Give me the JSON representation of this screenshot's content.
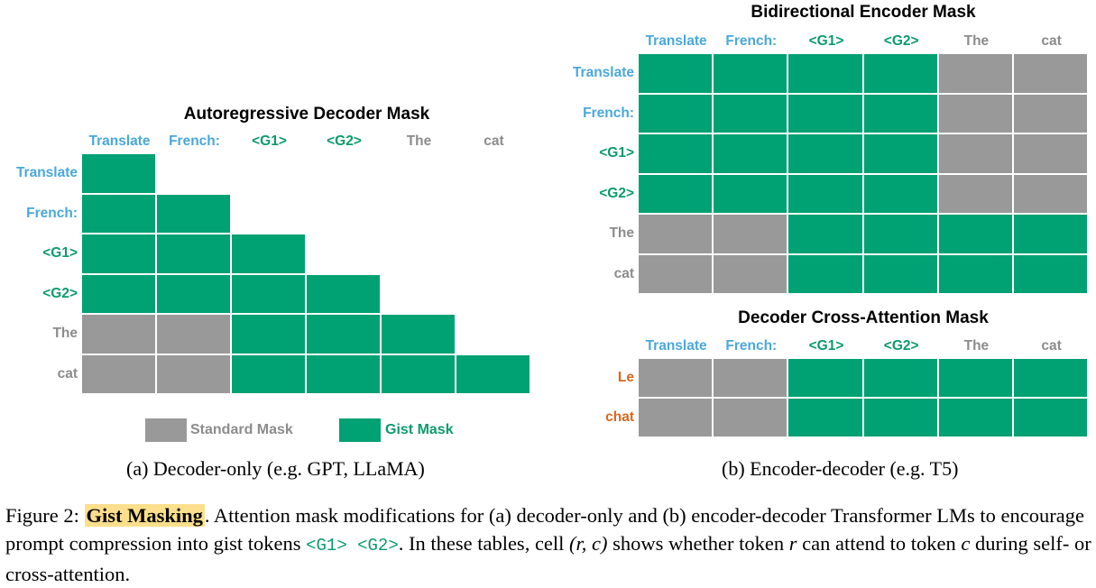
{
  "colors": {
    "gist": "#00a172",
    "standard": "#999999",
    "prompt_token": "#4aa8dc",
    "gist_token": "#0d9b6a",
    "output_token": "#8c8c8c",
    "decoder_token": "#d9671c"
  },
  "panel_a": {
    "title": "Autoregressive Decoder Mask",
    "col_tokens": [
      "Translate",
      "French:",
      "<G1>",
      "<G2>",
      "The",
      "cat"
    ],
    "row_tokens": [
      "Translate",
      "French:",
      "<G1>",
      "<G2>",
      "The",
      "cat"
    ],
    "mask": [
      [
        "G",
        "",
        "",
        "",
        "",
        ""
      ],
      [
        "G",
        "G",
        "",
        "",
        "",
        ""
      ],
      [
        "G",
        "G",
        "G",
        "",
        "",
        ""
      ],
      [
        "G",
        "G",
        "G",
        "G",
        "",
        ""
      ],
      [
        "S",
        "S",
        "G",
        "G",
        "G",
        ""
      ],
      [
        "S",
        "S",
        "G",
        "G",
        "G",
        "G"
      ]
    ],
    "legend": {
      "standard_label": "Standard Mask",
      "gist_label": "Gist Mask"
    },
    "caption": "(a) Decoder-only (e.g. GPT, LLaMA)"
  },
  "panel_b": {
    "encoder": {
      "title": "Bidirectional Encoder Mask",
      "col_tokens": [
        "Translate",
        "French:",
        "<G1>",
        "<G2>",
        "The",
        "cat"
      ],
      "row_tokens": [
        "Translate",
        "French:",
        "<G1>",
        "<G2>",
        "The",
        "cat"
      ],
      "mask": [
        [
          "G",
          "G",
          "G",
          "G",
          "S",
          "S"
        ],
        [
          "G",
          "G",
          "G",
          "G",
          "S",
          "S"
        ],
        [
          "G",
          "G",
          "G",
          "G",
          "S",
          "S"
        ],
        [
          "G",
          "G",
          "G",
          "G",
          "S",
          "S"
        ],
        [
          "S",
          "S",
          "G",
          "G",
          "G",
          "G"
        ],
        [
          "S",
          "S",
          "G",
          "G",
          "G",
          "G"
        ]
      ]
    },
    "cross": {
      "title": "Decoder Cross-Attention Mask",
      "col_tokens": [
        "Translate",
        "French:",
        "<G1>",
        "<G2>",
        "The",
        "cat"
      ],
      "row_tokens": [
        "Le",
        "chat"
      ],
      "mask": [
        [
          "S",
          "S",
          "G",
          "G",
          "G",
          "G"
        ],
        [
          "S",
          "S",
          "G",
          "G",
          "G",
          "G"
        ]
      ]
    },
    "caption": "(b) Encoder-decoder (e.g. T5)"
  },
  "figure_caption": {
    "prefix": "Figure 2: ",
    "highlight": "Gist Masking",
    "text1": ". Attention mask modifications for (a) decoder-only and (b) encoder-decoder Transformer LMs to encourage prompt compression into gist tokens ",
    "code": "<G1> <G2>",
    "text2": ". In these tables, cell ",
    "math_rc": "(r, c)",
    "text3": " shows whether token ",
    "math_r": "r",
    "text4": " can attend to token ",
    "math_c": "c",
    "text5": " during self- or cross-attention."
  }
}
